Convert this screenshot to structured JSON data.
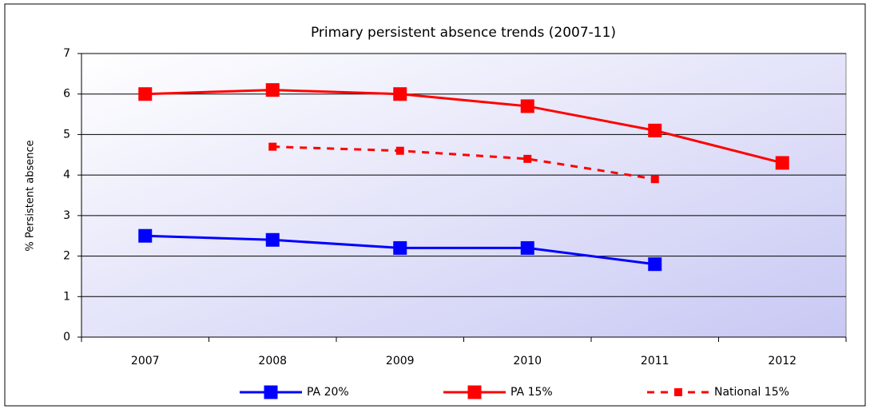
{
  "chart_data": {
    "type": "line",
    "title": "Primary persistent absence trends (2007-11)",
    "y_label": "% Persistent absence",
    "categories": [
      "2007",
      "2008",
      "2009",
      "2010",
      "2011",
      "2012"
    ],
    "series": [
      {
        "name": "PA 20%",
        "color": "#0000ff",
        "linestyle": "solid",
        "values": [
          2.5,
          2.4,
          2.2,
          2.2,
          1.8,
          null
        ]
      },
      {
        "name": "PA 15%",
        "color": "#ff0000",
        "linestyle": "solid",
        "values": [
          6.0,
          6.1,
          6.0,
          5.7,
          5.1,
          4.3
        ]
      },
      {
        "name": "National 15%",
        "color": "#ff0000",
        "linestyle": "dashed",
        "values": [
          null,
          4.7,
          4.6,
          4.4,
          3.9,
          null
        ]
      }
    ],
    "ylim": [
      0,
      7
    ],
    "yticks": [
      0,
      1,
      2,
      3,
      4,
      5,
      6,
      7
    ],
    "grid": true,
    "legend": "bottom"
  }
}
